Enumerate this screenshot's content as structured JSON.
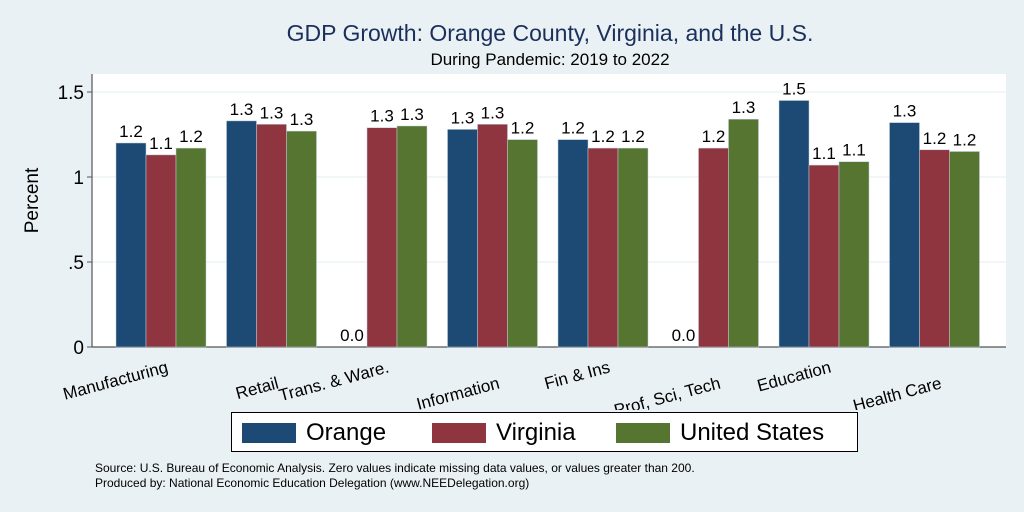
{
  "chart_data": {
    "type": "bar",
    "title": "GDP Growth: Orange County, Virginia, and the U.S.",
    "subtitle": "During Pandemic: 2019 to 2022",
    "xlabel": "",
    "ylabel": "Percent",
    "ylim": [
      0,
      1.6
    ],
    "yticks": [
      0,
      0.5,
      1,
      1.5
    ],
    "ytick_labels": [
      "0",
      ".5",
      "1",
      "1.5"
    ],
    "grid": true,
    "legend_position": "bottom",
    "categories": [
      "Manufacturing",
      "Retail",
      "Trans. & Ware.",
      "Information",
      "Fin & Ins",
      "Prof, Sci, Tech",
      "Education",
      "Health Care"
    ],
    "series": [
      {
        "name": "Orange",
        "color": "#1c4a74",
        "values": [
          1.2,
          1.33,
          0.0,
          1.28,
          1.22,
          0.0,
          1.45,
          1.32
        ],
        "labels": [
          "1.2",
          "1.3",
          "0.0",
          "1.3",
          "1.2",
          "0.0",
          "1.5",
          "1.3"
        ]
      },
      {
        "name": "Virginia",
        "color": "#8f3540",
        "values": [
          1.13,
          1.31,
          1.29,
          1.31,
          1.17,
          1.17,
          1.07,
          1.16
        ],
        "labels": [
          "1.1",
          "1.3",
          "1.3",
          "1.3",
          "1.2",
          "1.2",
          "1.1",
          "1.2"
        ]
      },
      {
        "name": "United States",
        "color": "#567530",
        "values": [
          1.17,
          1.27,
          1.3,
          1.22,
          1.17,
          1.34,
          1.09,
          1.15
        ],
        "labels": [
          "1.2",
          "1.3",
          "1.3",
          "1.2",
          "1.2",
          "1.3",
          "1.1",
          "1.2"
        ]
      }
    ]
  },
  "notes": {
    "source": "Source: U.S. Bureau of Economic Analysis. Zero values indicate missing data values, or values greater than 200.",
    "produced": "Produced by: National Economic Education Delegation (www.NEEDelegation.org)"
  }
}
